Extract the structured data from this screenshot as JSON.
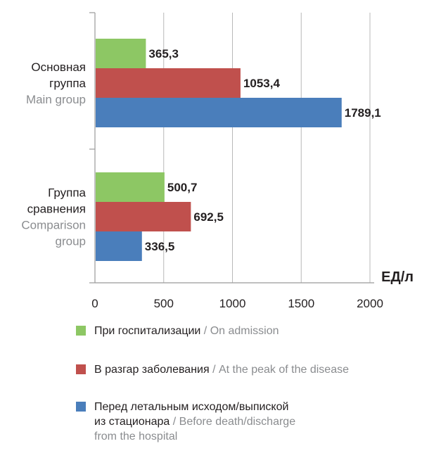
{
  "chart_data": {
    "type": "bar",
    "orientation": "horizontal",
    "categories": [
      {
        "label_ru": "Основная\nгруппа",
        "label_en": "Main group"
      },
      {
        "label_ru": "Группа\nсравнения",
        "label_en": "Comparison\ngroup"
      }
    ],
    "series": [
      {
        "name_ru": "При госпитализации",
        "name_en": "On admission",
        "color": "#8dc764",
        "values": [
          365.3,
          500.7
        ],
        "value_labels": [
          "365,3",
          "500,7"
        ]
      },
      {
        "name_ru": "В разгар заболевания",
        "name_en": "At the peak of the disease",
        "color": "#c0504d",
        "values": [
          1053.4,
          692.5
        ],
        "value_labels": [
          "1053,4",
          "692,5"
        ]
      },
      {
        "name_ru": "Перед летальным исходом/выпиской\nиз стационара",
        "name_en": "Before death/discharge\nfrom the hospital",
        "color": "#4a7ebb",
        "values": [
          1789.1,
          336.5
        ],
        "value_labels": [
          "1789,1",
          "336,5"
        ]
      }
    ],
    "x_unit": "ЕД/л",
    "xlim": [
      0,
      2000
    ],
    "xticks": [
      "0",
      "500",
      "1000",
      "1500",
      "2000"
    ],
    "grid": true,
    "legend_position": "bottom"
  }
}
